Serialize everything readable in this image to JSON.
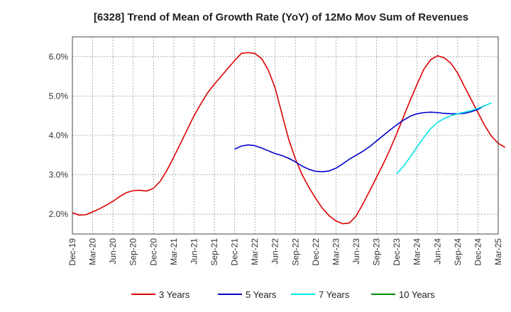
{
  "chart_data": {
    "type": "line",
    "title": "[6328]  Trend of Mean of Growth Rate (YoY) of 12Mo Mov Sum of Revenues",
    "xlabel": "",
    "ylabel": "",
    "ylim": [
      1.5,
      6.5
    ],
    "yticks": [
      2.0,
      3.0,
      4.0,
      5.0,
      6.0
    ],
    "ytick_labels": [
      "2.0%",
      "3.0%",
      "4.0%",
      "5.0%",
      "6.0%"
    ],
    "x_start": "Dec-19",
    "x_end": "Mar-25",
    "xtick_labels": [
      "Dec-19",
      "Mar-20",
      "Jun-20",
      "Sep-20",
      "Dec-20",
      "Mar-21",
      "Jun-21",
      "Sep-21",
      "Dec-21",
      "Mar-22",
      "Jun-22",
      "Sep-22",
      "Dec-22",
      "Mar-23",
      "Jun-23",
      "Sep-23",
      "Dec-23",
      "Mar-24",
      "Jun-24",
      "Sep-24",
      "Dec-24",
      "Mar-25"
    ],
    "grid": true,
    "legend_position": "bottom",
    "series": [
      {
        "name": "3 Years",
        "color": "#dd0000",
        "start_month_index": 0,
        "values": [
          2.04,
          1.98,
          1.99,
          2.06,
          2.14,
          2.23,
          2.33,
          2.45,
          2.55,
          2.6,
          2.61,
          2.59,
          2.66,
          2.84,
          3.12,
          3.45,
          3.8,
          4.15,
          4.5,
          4.8,
          5.08,
          5.3,
          5.5,
          5.7,
          5.9,
          6.08,
          6.1,
          6.08,
          5.95,
          5.65,
          5.2,
          4.55,
          3.9,
          3.4,
          3.0,
          2.68,
          2.4,
          2.15,
          1.96,
          1.83,
          1.76,
          1.78,
          1.96,
          2.27,
          2.6,
          2.94,
          3.28,
          3.65,
          4.05,
          4.48,
          4.9,
          5.3,
          5.68,
          5.92,
          6.02,
          5.97,
          5.83,
          5.58,
          5.24,
          4.91,
          4.58,
          4.25,
          3.98,
          3.8,
          3.7
        ]
      },
      {
        "name": "5 Years",
        "color": "#0000cc",
        "start_month_index": 24,
        "values": [
          3.65,
          3.73,
          3.76,
          3.74,
          3.68,
          3.61,
          3.54,
          3.49,
          3.42,
          3.33,
          3.22,
          3.14,
          3.09,
          3.08,
          3.1,
          3.17,
          3.28,
          3.4,
          3.5,
          3.6,
          3.72,
          3.86,
          4.0,
          4.14,
          4.27,
          4.39,
          4.49,
          4.55,
          4.58,
          4.59,
          4.58,
          4.56,
          4.55,
          4.55,
          4.56,
          4.6,
          4.66,
          4.76
        ]
      },
      {
        "name": "7 Years",
        "color": "#00e5e5",
        "start_month_index": 48,
        "values": [
          3.03,
          3.22,
          3.46,
          3.71,
          3.95,
          4.17,
          4.33,
          4.43,
          4.5,
          4.55,
          4.59,
          4.63,
          4.69,
          4.75,
          4.83
        ]
      },
      {
        "name": "10 Years",
        "color": "#008800",
        "start_month_index": 0,
        "values": []
      }
    ]
  }
}
